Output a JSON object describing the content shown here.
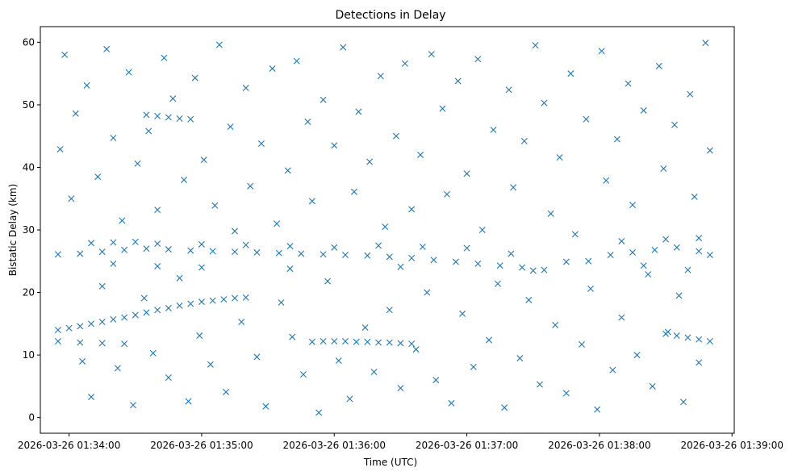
{
  "chart_data": {
    "type": "scatter",
    "title": "Detections in Delay",
    "xlabel": "Time (UTC)",
    "ylabel": "Bistatic Delay (km)",
    "marker": "x",
    "color": "#1f77b4",
    "xlim": [
      "2026-03-26 01:33:47",
      "2026-03-26 01:39:01"
    ],
    "ylim": [
      -2.5,
      62.5
    ],
    "grid": false,
    "x_ticks": [
      "2026-03-26 01:34:00",
      "2026-03-26 01:35:00",
      "2026-03-26 01:36:00",
      "2026-03-26 01:37:00",
      "2026-03-26 01:38:00",
      "2026-03-26 01:39:00"
    ],
    "y_ticks": [
      "0",
      "10",
      "20",
      "30",
      "40",
      "50",
      "60"
    ],
    "series": [
      {
        "points": [
          [
            "01:33:55",
            14.0
          ],
          [
            "01:34:00",
            14.3
          ],
          [
            "01:34:05",
            14.6
          ],
          [
            "01:34:10",
            15.0
          ],
          [
            "01:34:15",
            15.3
          ],
          [
            "01:34:20",
            15.7
          ],
          [
            "01:34:25",
            16.0
          ],
          [
            "01:34:30",
            16.4
          ],
          [
            "01:34:35",
            16.8
          ],
          [
            "01:34:40",
            17.2
          ],
          [
            "01:34:45",
            17.5
          ],
          [
            "01:34:50",
            17.9
          ],
          [
            "01:34:55",
            18.2
          ],
          [
            "01:35:00",
            18.5
          ],
          [
            "01:35:05",
            18.7
          ],
          [
            "01:35:10",
            18.9
          ],
          [
            "01:35:15",
            19.1
          ],
          [
            "01:35:20",
            19.2
          ],
          [
            "01:33:55",
            26.1
          ],
          [
            "01:34:05",
            26.2
          ],
          [
            "01:34:15",
            26.5
          ],
          [
            "01:34:25",
            26.8
          ],
          [
            "01:34:35",
            27.0
          ],
          [
            "01:34:45",
            26.9
          ],
          [
            "01:34:55",
            26.7
          ],
          [
            "01:35:05",
            26.6
          ],
          [
            "01:35:15",
            26.5
          ],
          [
            "01:35:25",
            26.4
          ],
          [
            "01:35:35",
            26.3
          ],
          [
            "01:35:45",
            26.2
          ],
          [
            "01:35:55",
            26.1
          ],
          [
            "01:36:05",
            26.0
          ],
          [
            "01:36:15",
            25.9
          ],
          [
            "01:36:25",
            25.7
          ],
          [
            "01:36:35",
            25.5
          ],
          [
            "01:36:45",
            25.2
          ],
          [
            "01:36:55",
            24.9
          ],
          [
            "01:37:05",
            24.6
          ],
          [
            "01:37:15",
            24.3
          ],
          [
            "01:37:25",
            24.0
          ],
          [
            "01:37:35",
            23.6
          ],
          [
            "01:37:45",
            24.9
          ],
          [
            "01:37:55",
            25.0
          ],
          [
            "01:38:05",
            26.0
          ],
          [
            "01:38:15",
            26.4
          ],
          [
            "01:38:25",
            26.8
          ],
          [
            "01:38:35",
            27.2
          ],
          [
            "01:38:45",
            26.6
          ],
          [
            "01:38:50",
            26.0
          ],
          [
            "01:34:10",
            27.9
          ],
          [
            "01:34:20",
            28.0
          ],
          [
            "01:34:30",
            28.1
          ],
          [
            "01:34:40",
            27.8
          ],
          [
            "01:35:00",
            27.7
          ],
          [
            "01:35:20",
            27.6
          ],
          [
            "01:35:40",
            27.4
          ],
          [
            "01:36:00",
            27.2
          ],
          [
            "01:36:20",
            27.5
          ],
          [
            "01:36:40",
            27.3
          ],
          [
            "01:37:00",
            27.1
          ],
          [
            "01:37:20",
            26.2
          ],
          [
            "01:38:10",
            28.2
          ],
          [
            "01:38:30",
            28.5
          ],
          [
            "01:38:45",
            28.7
          ],
          [
            "01:34:20",
            24.6
          ],
          [
            "01:34:40",
            24.2
          ],
          [
            "01:35:00",
            24.0
          ],
          [
            "01:35:40",
            23.8
          ],
          [
            "01:36:30",
            24.1
          ],
          [
            "01:37:30",
            23.5
          ],
          [
            "01:38:20",
            24.3
          ],
          [
            "01:38:40",
            23.6
          ],
          [
            "01:35:50",
            12.1
          ],
          [
            "01:35:55",
            12.2
          ],
          [
            "01:36:00",
            12.2
          ],
          [
            "01:36:05",
            12.2
          ],
          [
            "01:36:10",
            12.1
          ],
          [
            "01:36:15",
            12.1
          ],
          [
            "01:36:20",
            12.0
          ],
          [
            "01:36:25",
            12.0
          ],
          [
            "01:36:30",
            11.9
          ],
          [
            "01:36:35",
            11.8
          ],
          [
            "01:33:55",
            12.2
          ],
          [
            "01:34:05",
            12.0
          ],
          [
            "01:34:15",
            11.9
          ],
          [
            "01:34:25",
            11.8
          ],
          [
            "01:38:30",
            13.4
          ],
          [
            "01:38:35",
            13.1
          ],
          [
            "01:38:40",
            12.8
          ],
          [
            "01:38:45",
            12.5
          ],
          [
            "01:38:50",
            12.2
          ],
          [
            "01:34:35",
            48.4
          ],
          [
            "01:34:40",
            48.2
          ],
          [
            "01:34:45",
            48.0
          ],
          [
            "01:34:50",
            47.8
          ],
          [
            "01:34:55",
            47.7
          ],
          [
            "01:33:56",
            42.9
          ],
          [
            "01:33:58",
            58.0
          ],
          [
            "01:34:01",
            35.0
          ],
          [
            "01:34:03",
            48.6
          ],
          [
            "01:34:06",
            9.0
          ],
          [
            "01:34:08",
            53.1
          ],
          [
            "01:34:10",
            3.3
          ],
          [
            "01:34:13",
            38.5
          ],
          [
            "01:34:15",
            21.0
          ],
          [
            "01:34:17",
            58.9
          ],
          [
            "01:34:20",
            44.7
          ],
          [
            "01:34:22",
            7.9
          ],
          [
            "01:34:24",
            31.5
          ],
          [
            "01:34:27",
            55.2
          ],
          [
            "01:34:29",
            2.0
          ],
          [
            "01:34:31",
            40.6
          ],
          [
            "01:34:34",
            19.1
          ],
          [
            "01:34:36",
            45.8
          ],
          [
            "01:34:38",
            10.3
          ],
          [
            "01:34:40",
            33.2
          ],
          [
            "01:34:43",
            57.5
          ],
          [
            "01:34:45",
            6.4
          ],
          [
            "01:34:47",
            51.0
          ],
          [
            "01:34:50",
            22.3
          ],
          [
            "01:34:52",
            38.0
          ],
          [
            "01:34:54",
            2.6
          ],
          [
            "01:34:57",
            54.3
          ],
          [
            "01:34:59",
            13.1
          ],
          [
            "01:35:01",
            41.2
          ],
          [
            "01:35:04",
            8.5
          ],
          [
            "01:35:06",
            33.9
          ],
          [
            "01:35:08",
            59.6
          ],
          [
            "01:35:11",
            4.1
          ],
          [
            "01:35:13",
            46.5
          ],
          [
            "01:35:15",
            29.8
          ],
          [
            "01:35:18",
            15.3
          ],
          [
            "01:35:20",
            52.7
          ],
          [
            "01:35:22",
            37.0
          ],
          [
            "01:35:25",
            9.7
          ],
          [
            "01:35:27",
            43.8
          ],
          [
            "01:35:29",
            1.8
          ],
          [
            "01:35:32",
            55.8
          ],
          [
            "01:35:34",
            31.0
          ],
          [
            "01:35:36",
            18.4
          ],
          [
            "01:35:39",
            39.5
          ],
          [
            "01:35:41",
            12.9
          ],
          [
            "01:35:43",
            57.0
          ],
          [
            "01:35:46",
            6.9
          ],
          [
            "01:35:48",
            47.3
          ],
          [
            "01:35:50",
            34.6
          ],
          [
            "01:35:53",
            0.8
          ],
          [
            "01:35:55",
            50.8
          ],
          [
            "01:35:57",
            21.8
          ],
          [
            "01:36:00",
            43.5
          ],
          [
            "01:36:02",
            9.1
          ],
          [
            "01:36:04",
            59.2
          ],
          [
            "01:36:07",
            3.0
          ],
          [
            "01:36:09",
            36.1
          ],
          [
            "01:36:11",
            48.9
          ],
          [
            "01:36:14",
            14.4
          ],
          [
            "01:36:16",
            40.9
          ],
          [
            "01:36:18",
            7.3
          ],
          [
            "01:36:21",
            54.6
          ],
          [
            "01:36:23",
            30.5
          ],
          [
            "01:36:25",
            17.2
          ],
          [
            "01:36:28",
            45.0
          ],
          [
            "01:36:30",
            4.7
          ],
          [
            "01:36:32",
            56.6
          ],
          [
            "01:36:35",
            33.3
          ],
          [
            "01:36:37",
            10.9
          ],
          [
            "01:36:39",
            42.0
          ],
          [
            "01:36:42",
            20.0
          ],
          [
            "01:36:44",
            58.1
          ],
          [
            "01:36:46",
            6.0
          ],
          [
            "01:36:49",
            49.4
          ],
          [
            "01:36:51",
            35.7
          ],
          [
            "01:36:53",
            2.3
          ],
          [
            "01:36:56",
            53.8
          ],
          [
            "01:36:58",
            16.6
          ],
          [
            "01:37:00",
            39.0
          ],
          [
            "01:37:03",
            8.1
          ],
          [
            "01:37:05",
            57.3
          ],
          [
            "01:37:07",
            30.0
          ],
          [
            "01:37:10",
            12.4
          ],
          [
            "01:37:12",
            46.0
          ],
          [
            "01:37:14",
            21.4
          ],
          [
            "01:37:17",
            1.6
          ],
          [
            "01:37:19",
            52.4
          ],
          [
            "01:37:21",
            36.8
          ],
          [
            "01:37:24",
            9.5
          ],
          [
            "01:37:26",
            44.2
          ],
          [
            "01:37:28",
            18.8
          ],
          [
            "01:37:31",
            59.5
          ],
          [
            "01:37:33",
            5.3
          ],
          [
            "01:37:35",
            50.3
          ],
          [
            "01:37:38",
            32.6
          ],
          [
            "01:37:40",
            14.8
          ],
          [
            "01:37:42",
            41.6
          ],
          [
            "01:37:45",
            3.9
          ],
          [
            "01:37:47",
            55.0
          ],
          [
            "01:37:49",
            29.3
          ],
          [
            "01:37:52",
            11.7
          ],
          [
            "01:37:54",
            47.7
          ],
          [
            "01:37:56",
            20.6
          ],
          [
            "01:37:59",
            1.3
          ],
          [
            "01:38:01",
            58.6
          ],
          [
            "01:38:03",
            37.9
          ],
          [
            "01:38:06",
            7.6
          ],
          [
            "01:38:08",
            44.5
          ],
          [
            "01:38:10",
            16.0
          ],
          [
            "01:38:13",
            53.4
          ],
          [
            "01:38:15",
            34.0
          ],
          [
            "01:38:17",
            10.0
          ],
          [
            "01:38:20",
            49.1
          ],
          [
            "01:38:22",
            22.9
          ],
          [
            "01:38:24",
            5.0
          ],
          [
            "01:38:27",
            56.2
          ],
          [
            "01:38:29",
            39.8
          ],
          [
            "01:38:31",
            13.7
          ],
          [
            "01:38:34",
            46.8
          ],
          [
            "01:38:36",
            19.5
          ],
          [
            "01:38:38",
            2.5
          ],
          [
            "01:38:41",
            51.7
          ],
          [
            "01:38:43",
            35.3
          ],
          [
            "01:38:45",
            8.8
          ],
          [
            "01:38:48",
            59.9
          ],
          [
            "01:38:50",
            42.7
          ]
        ]
      }
    ]
  }
}
